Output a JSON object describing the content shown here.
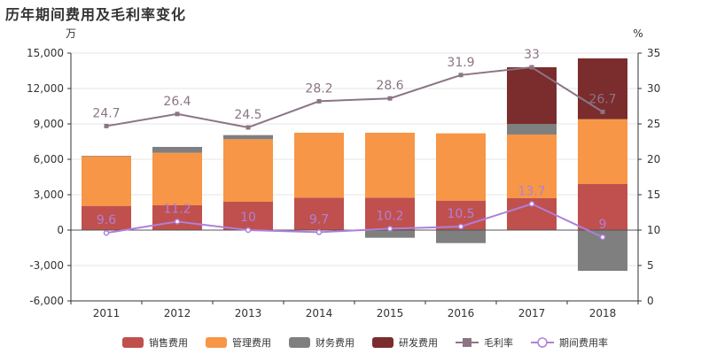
{
  "chart_data": {
    "type": "bar",
    "title": "历年期间费用及毛利率变化",
    "y_left_unit": "万",
    "y_right_unit": "%",
    "categories": [
      "2011",
      "2012",
      "2013",
      "2014",
      "2015",
      "2016",
      "2017",
      "2018"
    ],
    "y_left_ticks": [
      "-6,000",
      "-3,000",
      "0",
      "3,000",
      "6,000",
      "9,000",
      "12,000",
      "15,000"
    ],
    "y_right_ticks": [
      "0",
      "5",
      "10",
      "15",
      "20",
      "25",
      "30",
      "35"
    ],
    "y_left_range": [
      -6000,
      15000
    ],
    "y_right_range": [
      0,
      35
    ],
    "bar_series": [
      {
        "name": "销售费用",
        "color": "#c0504d",
        "values": [
          2050,
          2100,
          2400,
          2750,
          2750,
          2500,
          2700,
          3900
        ]
      },
      {
        "name": "管理费用",
        "color": "#f79646",
        "values": [
          4200,
          4450,
          5300,
          5500,
          5500,
          5700,
          5400,
          5500
        ]
      },
      {
        "name": "财务费用",
        "color": "#7f7f7f",
        "values": [
          50,
          500,
          350,
          0,
          -650,
          -1100,
          900,
          -3450
        ]
      },
      {
        "name": "研发费用",
        "color": "#7b2c2c",
        "values": [
          0,
          0,
          0,
          0,
          0,
          0,
          4800,
          5150
        ]
      }
    ],
    "line_series": [
      {
        "name": "毛利率",
        "color": "#8b7585",
        "marker": "square",
        "values": [
          24.7,
          26.4,
          24.5,
          28.2,
          28.6,
          31.9,
          33.0,
          26.7
        ],
        "labels": [
          "24.7",
          "26.4",
          "24.5",
          "28.2",
          "28.6",
          "31.9",
          "33",
          "26.7"
        ]
      },
      {
        "name": "期间费用率",
        "color": "#b07fd8",
        "marker": "circle",
        "values": [
          9.6,
          11.2,
          10.0,
          9.7,
          10.2,
          10.5,
          13.7,
          9.0
        ],
        "labels": [
          "9.6",
          "11.2",
          "10",
          "9.7",
          "10.2",
          "10.5",
          "13.7",
          "9"
        ]
      }
    ],
    "legend_position": "bottom",
    "grid": true
  }
}
